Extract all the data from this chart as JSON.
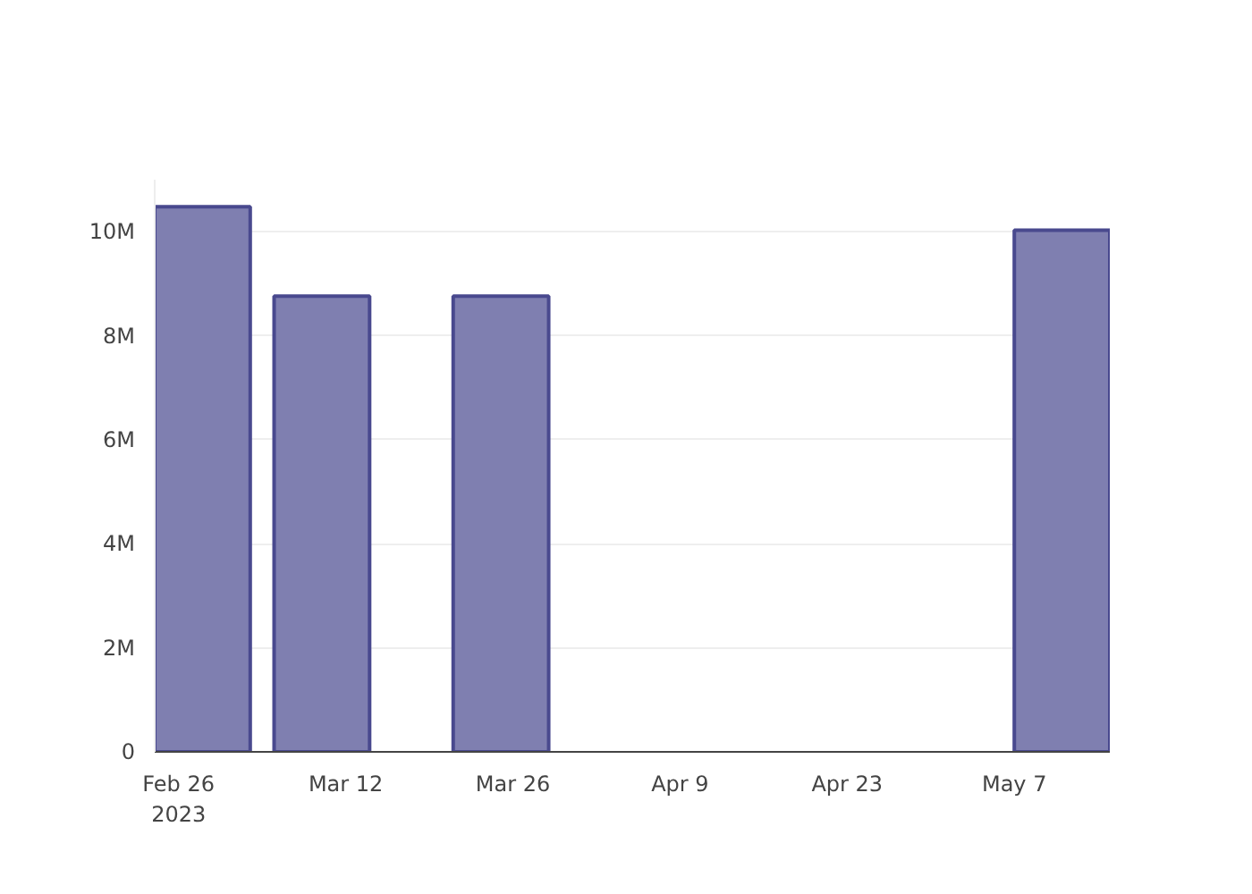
{
  "chart_data": {
    "type": "bar",
    "x": [
      "2023-02-28",
      "2023-03-10",
      "2023-03-25",
      "2023-05-11"
    ],
    "values": [
      10480000,
      8760000,
      8760000,
      10030000
    ],
    "color": "#7f7fb0",
    "xlim": [
      "2023-02-24",
      "2023-05-15"
    ],
    "xticks": [
      {
        "value": "2023-02-26",
        "label": "Feb 26\n2023"
      },
      {
        "value": "2023-03-12",
        "label": "Mar 12"
      },
      {
        "value": "2023-03-26",
        "label": "Mar 26"
      },
      {
        "value": "2023-04-09",
        "label": "Apr 9"
      },
      {
        "value": "2023-04-23",
        "label": "Apr 23"
      },
      {
        "value": "2023-05-07",
        "label": "May 7"
      }
    ],
    "ylim": [
      0,
      11000000
    ],
    "yticks": [
      0,
      {
        "value": 2000000,
        "label": "2M"
      },
      {
        "value": 4000000,
        "label": "4M"
      },
      {
        "value": 6000000,
        "label": "6M"
      },
      {
        "value": 8000000,
        "label": "8M"
      },
      {
        "value": 10000000,
        "label": "10M"
      }
    ],
    "grid": "y"
  }
}
